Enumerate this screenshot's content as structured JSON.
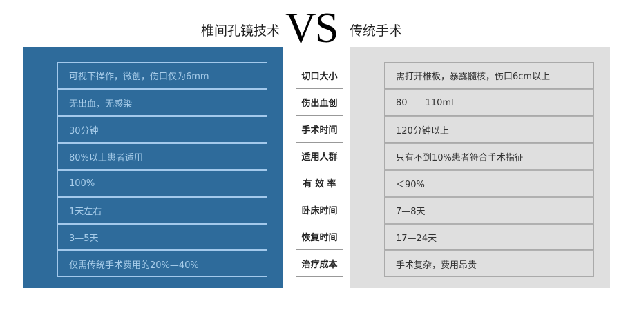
{
  "header": {
    "left_title": "椎间孔镜技术",
    "vs": "VS",
    "right_title": "传统手术"
  },
  "colors": {
    "left_panel": "#2e6b9b",
    "right_panel": "#dfdfdf",
    "left_text": "#a8cdea"
  },
  "left_items": [
    "可视下操作，微创，伤口仅为6mm",
    "无出血，无感染",
    "30分钟",
    "80%以上患者适用",
    "100%",
    "1天左右",
    "3—5天",
    "仅需传统手术费用的20%—40%"
  ],
  "labels": [
    "切口大小",
    "伤出血创",
    "手术时间",
    "适用人群",
    "有 效 率",
    "卧床时间",
    "恢复时间",
    "治疗成本"
  ],
  "right_items": [
    "需打开椎板，暴露髓核，伤口6cm以上",
    "80——110ml",
    "120分钟以上",
    "只有不到10%患者符合手术指征",
    "＜90%",
    "7—8天",
    "17—24天",
    "手术复杂，费用昂贵"
  ]
}
